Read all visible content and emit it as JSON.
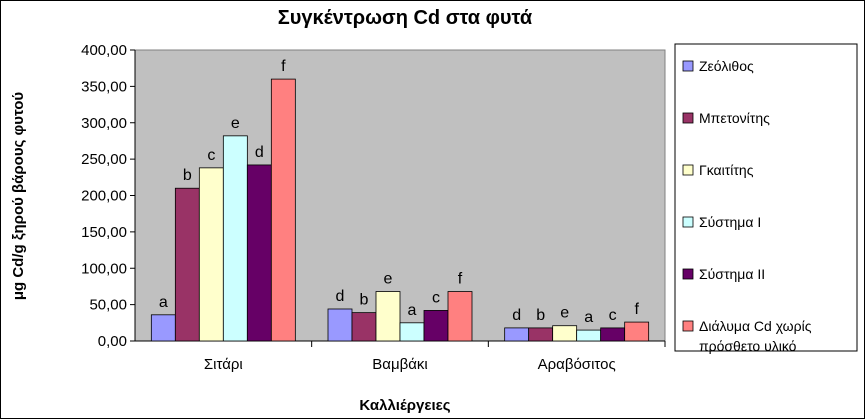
{
  "chart_data": {
    "type": "bar",
    "title": "Συγκέντρωση Cd στα φυτά",
    "xlabel": "Καλλιέργειες",
    "ylabel": "μg Cd/g ξηρού βάρους φυτού",
    "ylim": [
      0,
      400
    ],
    "yticks": [
      "0,00",
      "50,00",
      "100,00",
      "150,00",
      "200,00",
      "250,00",
      "300,00",
      "350,00",
      "400,00"
    ],
    "grid": false,
    "legend_position": "right",
    "categories": [
      "Σιτάρι",
      "Βαμβάκι",
      "Αραβόσιτος"
    ],
    "series": [
      {
        "name": "Ζεόλιθος",
        "color": "#9999ff",
        "values": [
          36,
          44,
          18
        ],
        "letters": [
          "a",
          "d",
          "d"
        ]
      },
      {
        "name": "Μπετονίτης",
        "color": "#993366",
        "values": [
          210,
          39,
          18
        ],
        "letters": [
          "b",
          "b",
          "b"
        ]
      },
      {
        "name": "Γκαιτίτης",
        "color": "#ffffcc",
        "values": [
          238,
          68,
          21
        ],
        "letters": [
          "c",
          "e",
          "e"
        ]
      },
      {
        "name": "Σύστημα Ι",
        "color": "#ccffff",
        "values": [
          282,
          25,
          15
        ],
        "letters": [
          "e",
          "a",
          "a"
        ]
      },
      {
        "name": "Σύστημα ΙΙ",
        "color": "#660066",
        "values": [
          242,
          42,
          18
        ],
        "letters": [
          "d",
          "c",
          "c"
        ]
      },
      {
        "name": "Διάλυμα Cd χωρίς πρόσθετο υλικό",
        "legend_lines": [
          "Διάλυμα Cd χωρίς",
          "πρόσθετο υλικό"
        ],
        "color": "#ff8080",
        "values": [
          360,
          68,
          26
        ],
        "letters": [
          "f",
          "f",
          "f"
        ]
      }
    ],
    "plot_background": "#c0c0c0"
  }
}
